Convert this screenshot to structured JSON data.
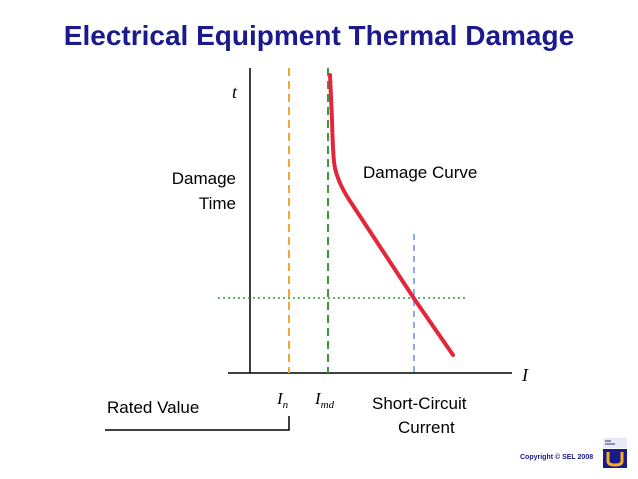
{
  "title": "Electrical Equipment Thermal Damage",
  "axis": {
    "y_symbol": "t",
    "x_symbol": "I"
  },
  "labels": {
    "damage_time_line1": "Damage",
    "damage_time_line2": "Time",
    "damage_curve": "Damage Curve",
    "rated_value": "Rated Value",
    "short_circuit_line1": "Short-Circuit",
    "short_circuit_line2": "Current",
    "i_n_base": "I",
    "i_n_sub": "n",
    "i_md_base": "I",
    "i_md_sub": "md"
  },
  "copyright": "Copyright © SEL 2008",
  "colors": {
    "title": "#1a1a8c",
    "curve": "#e3263c",
    "rated_line": "#f0a830",
    "imd_line": "#3a9a3a",
    "sc_line": "#6a8fe0",
    "horizontal_dotted": "#2e9a2e",
    "axis": "#000000"
  }
}
